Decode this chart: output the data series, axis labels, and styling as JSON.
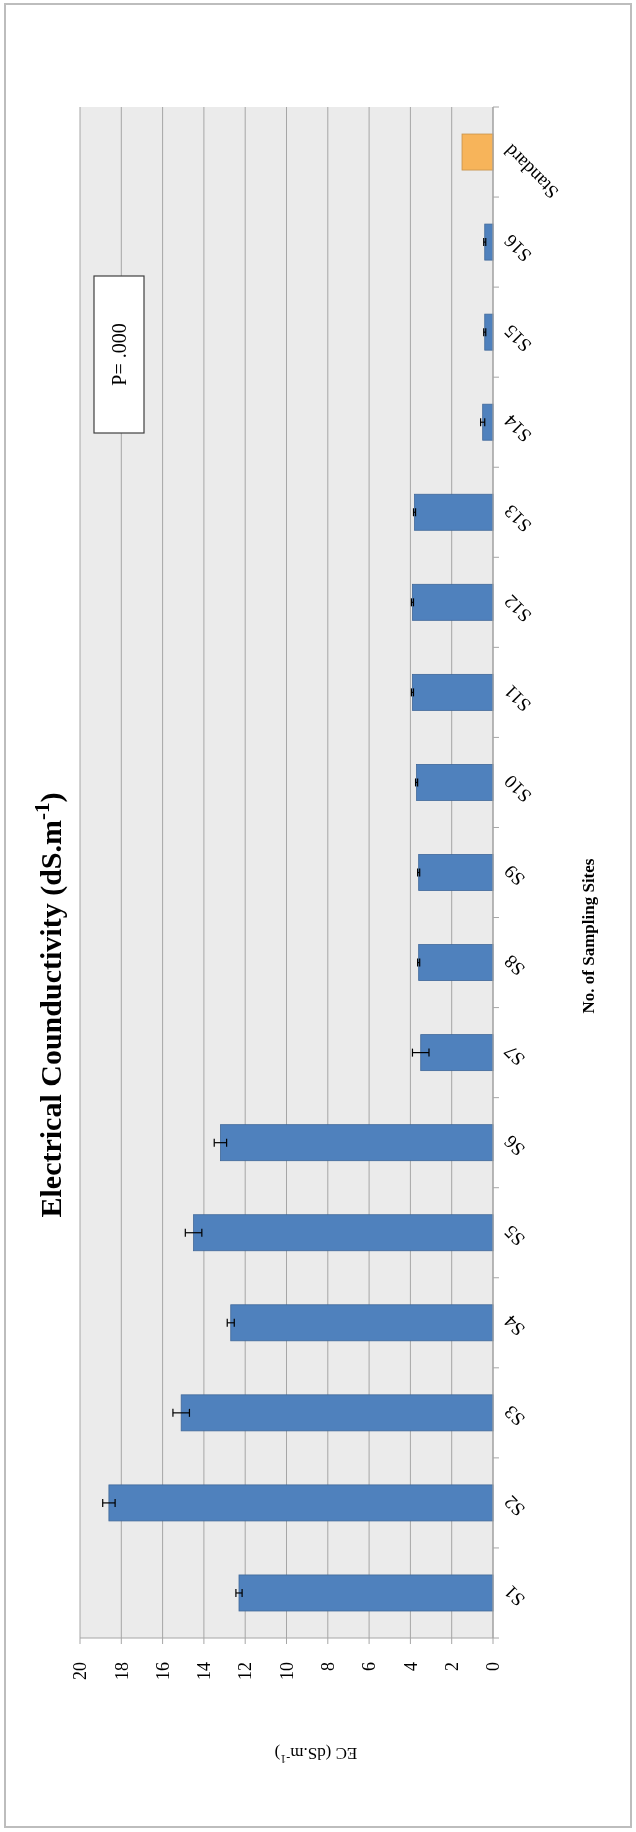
{
  "chart_data": {
    "type": "bar",
    "orientation": "horizontal",
    "title": "Electrical Counductivity (dS.m$^{-1}$)",
    "ylabel": "No. of Sampling Sites",
    "xlabel": "EC (dS.m$^{-1}$)",
    "categories": [
      "Standard",
      "S16",
      "S15",
      "S14",
      "S13",
      "S12",
      "S11",
      "S10",
      "S9",
      "S8",
      "S7",
      "S6",
      "S5",
      "S4",
      "S3",
      "S2",
      "S1"
    ],
    "values": [
      1.5,
      0.4,
      0.4,
      0.5,
      3.8,
      3.9,
      3.9,
      3.7,
      3.6,
      3.6,
      3.5,
      13.2,
      14.5,
      12.7,
      15.1,
      18.6,
      12.3
    ],
    "errors": [
      null,
      0.05,
      0.05,
      0.1,
      0.05,
      0.05,
      0.05,
      0.05,
      0.05,
      0.05,
      0.4,
      0.3,
      0.4,
      0.17,
      0.4,
      0.3,
      0.15
    ],
    "colors": [
      "#f7b45a",
      "#4f81bd",
      "#4f81bd",
      "#4f81bd",
      "#4f81bd",
      "#4f81bd",
      "#4f81bd",
      "#4f81bd",
      "#4f81bd",
      "#4f81bd",
      "#4f81bd",
      "#4f81bd",
      "#4f81bd",
      "#4f81bd",
      "#4f81bd",
      "#4f81bd",
      "#4f81bd"
    ],
    "xlim": [
      20,
      0
    ],
    "xticks": [
      20,
      18,
      16,
      14,
      12,
      10,
      8,
      6,
      4,
      2,
      0
    ],
    "grid": "x",
    "annotations": [
      "P= .000"
    ]
  }
}
